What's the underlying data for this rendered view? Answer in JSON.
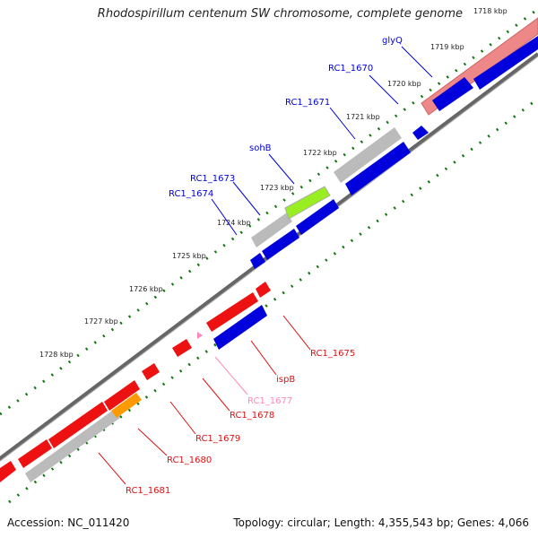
{
  "title": "Rhodospirillum centenum SW chromosome, complete genome",
  "footer": {
    "accession": "Accession: NC_011420",
    "summary": "Topology: circular; Length: 4,355,543 bp; Genes: 4,066"
  },
  "colors": {
    "forward": "#0000dd",
    "reverse": "#ee1111",
    "pseudo": "#bbbbbb",
    "rna_green": "#99ee22",
    "orange": "#ff9900",
    "pink": "#ff88bb",
    "salmon": "#ee8888",
    "tick": "#117711",
    "backbone": "#777777"
  },
  "kbp_labels": [
    "1718 kbp",
    "1719 kbp",
    "1720 kbp",
    "1721 kbp",
    "1722 kbp",
    "1723 kbp",
    "1724 kbp",
    "1725 kbp",
    "1726 kbp",
    "1727 kbp",
    "1728 kbp"
  ],
  "genes_top": [
    "glyQ",
    "RC1_1670",
    "RC1_1671",
    "sohB",
    "RC1_1673",
    "RC1_1674"
  ],
  "genes_bottom": [
    "RC1_1675",
    "ispB",
    "RC1_1677",
    "RC1_1678",
    "RC1_1679",
    "RC1_1680",
    "RC1_1681"
  ]
}
